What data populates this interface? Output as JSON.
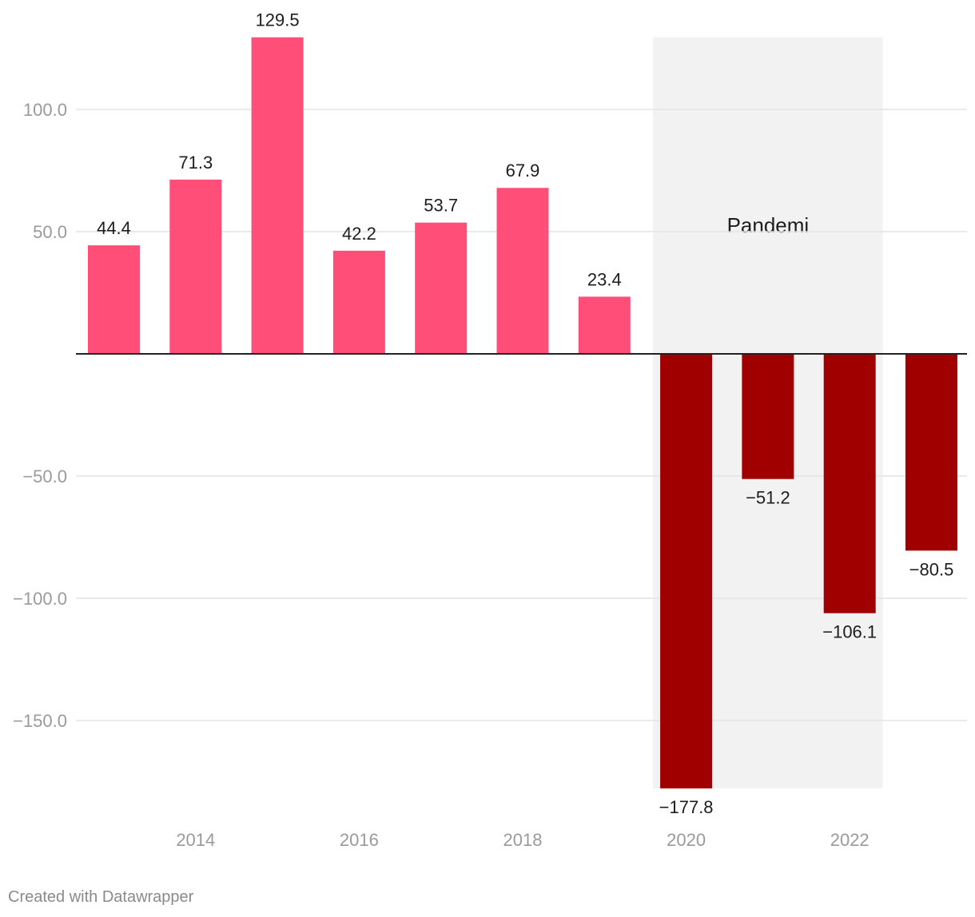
{
  "chart_data": {
    "type": "bar",
    "categories": [
      "2013",
      "2014",
      "2015",
      "2016",
      "2017",
      "2018",
      "2019",
      "2020",
      "2021",
      "2022",
      "2023"
    ],
    "values": [
      44.4,
      71.3,
      129.5,
      42.2,
      53.7,
      67.9,
      23.4,
      -177.8,
      -51.2,
      -106.1,
      -80.5
    ],
    "value_labels": [
      "44.4",
      "71.3",
      "129.5",
      "42.2",
      "53.7",
      "67.9",
      "23.4",
      "−177.8",
      "−51.2",
      "−106.1",
      "−80.5"
    ],
    "x_tick_labels": [
      "2014",
      "2016",
      "2018",
      "2020",
      "2022"
    ],
    "y_ticks": [
      100,
      50,
      -50,
      -100,
      -150
    ],
    "y_tick_labels": [
      "100.0",
      "50.0",
      "−50.0",
      "−100.0",
      "−150.0"
    ],
    "ylim": [
      -177.8,
      129.5
    ],
    "grid": true,
    "title": "",
    "xlabel": "",
    "ylabel": "",
    "highlight_range": {
      "from": "2020",
      "to": "2022",
      "label": "Pandemi"
    },
    "colors": {
      "positive": "#ff4f79",
      "negative": "#a10000",
      "highlight": "#f2f2f2",
      "grid": "#e4e4e4",
      "zero_line": "#222222"
    }
  },
  "footer": {
    "credit": "Created with Datawrapper"
  }
}
